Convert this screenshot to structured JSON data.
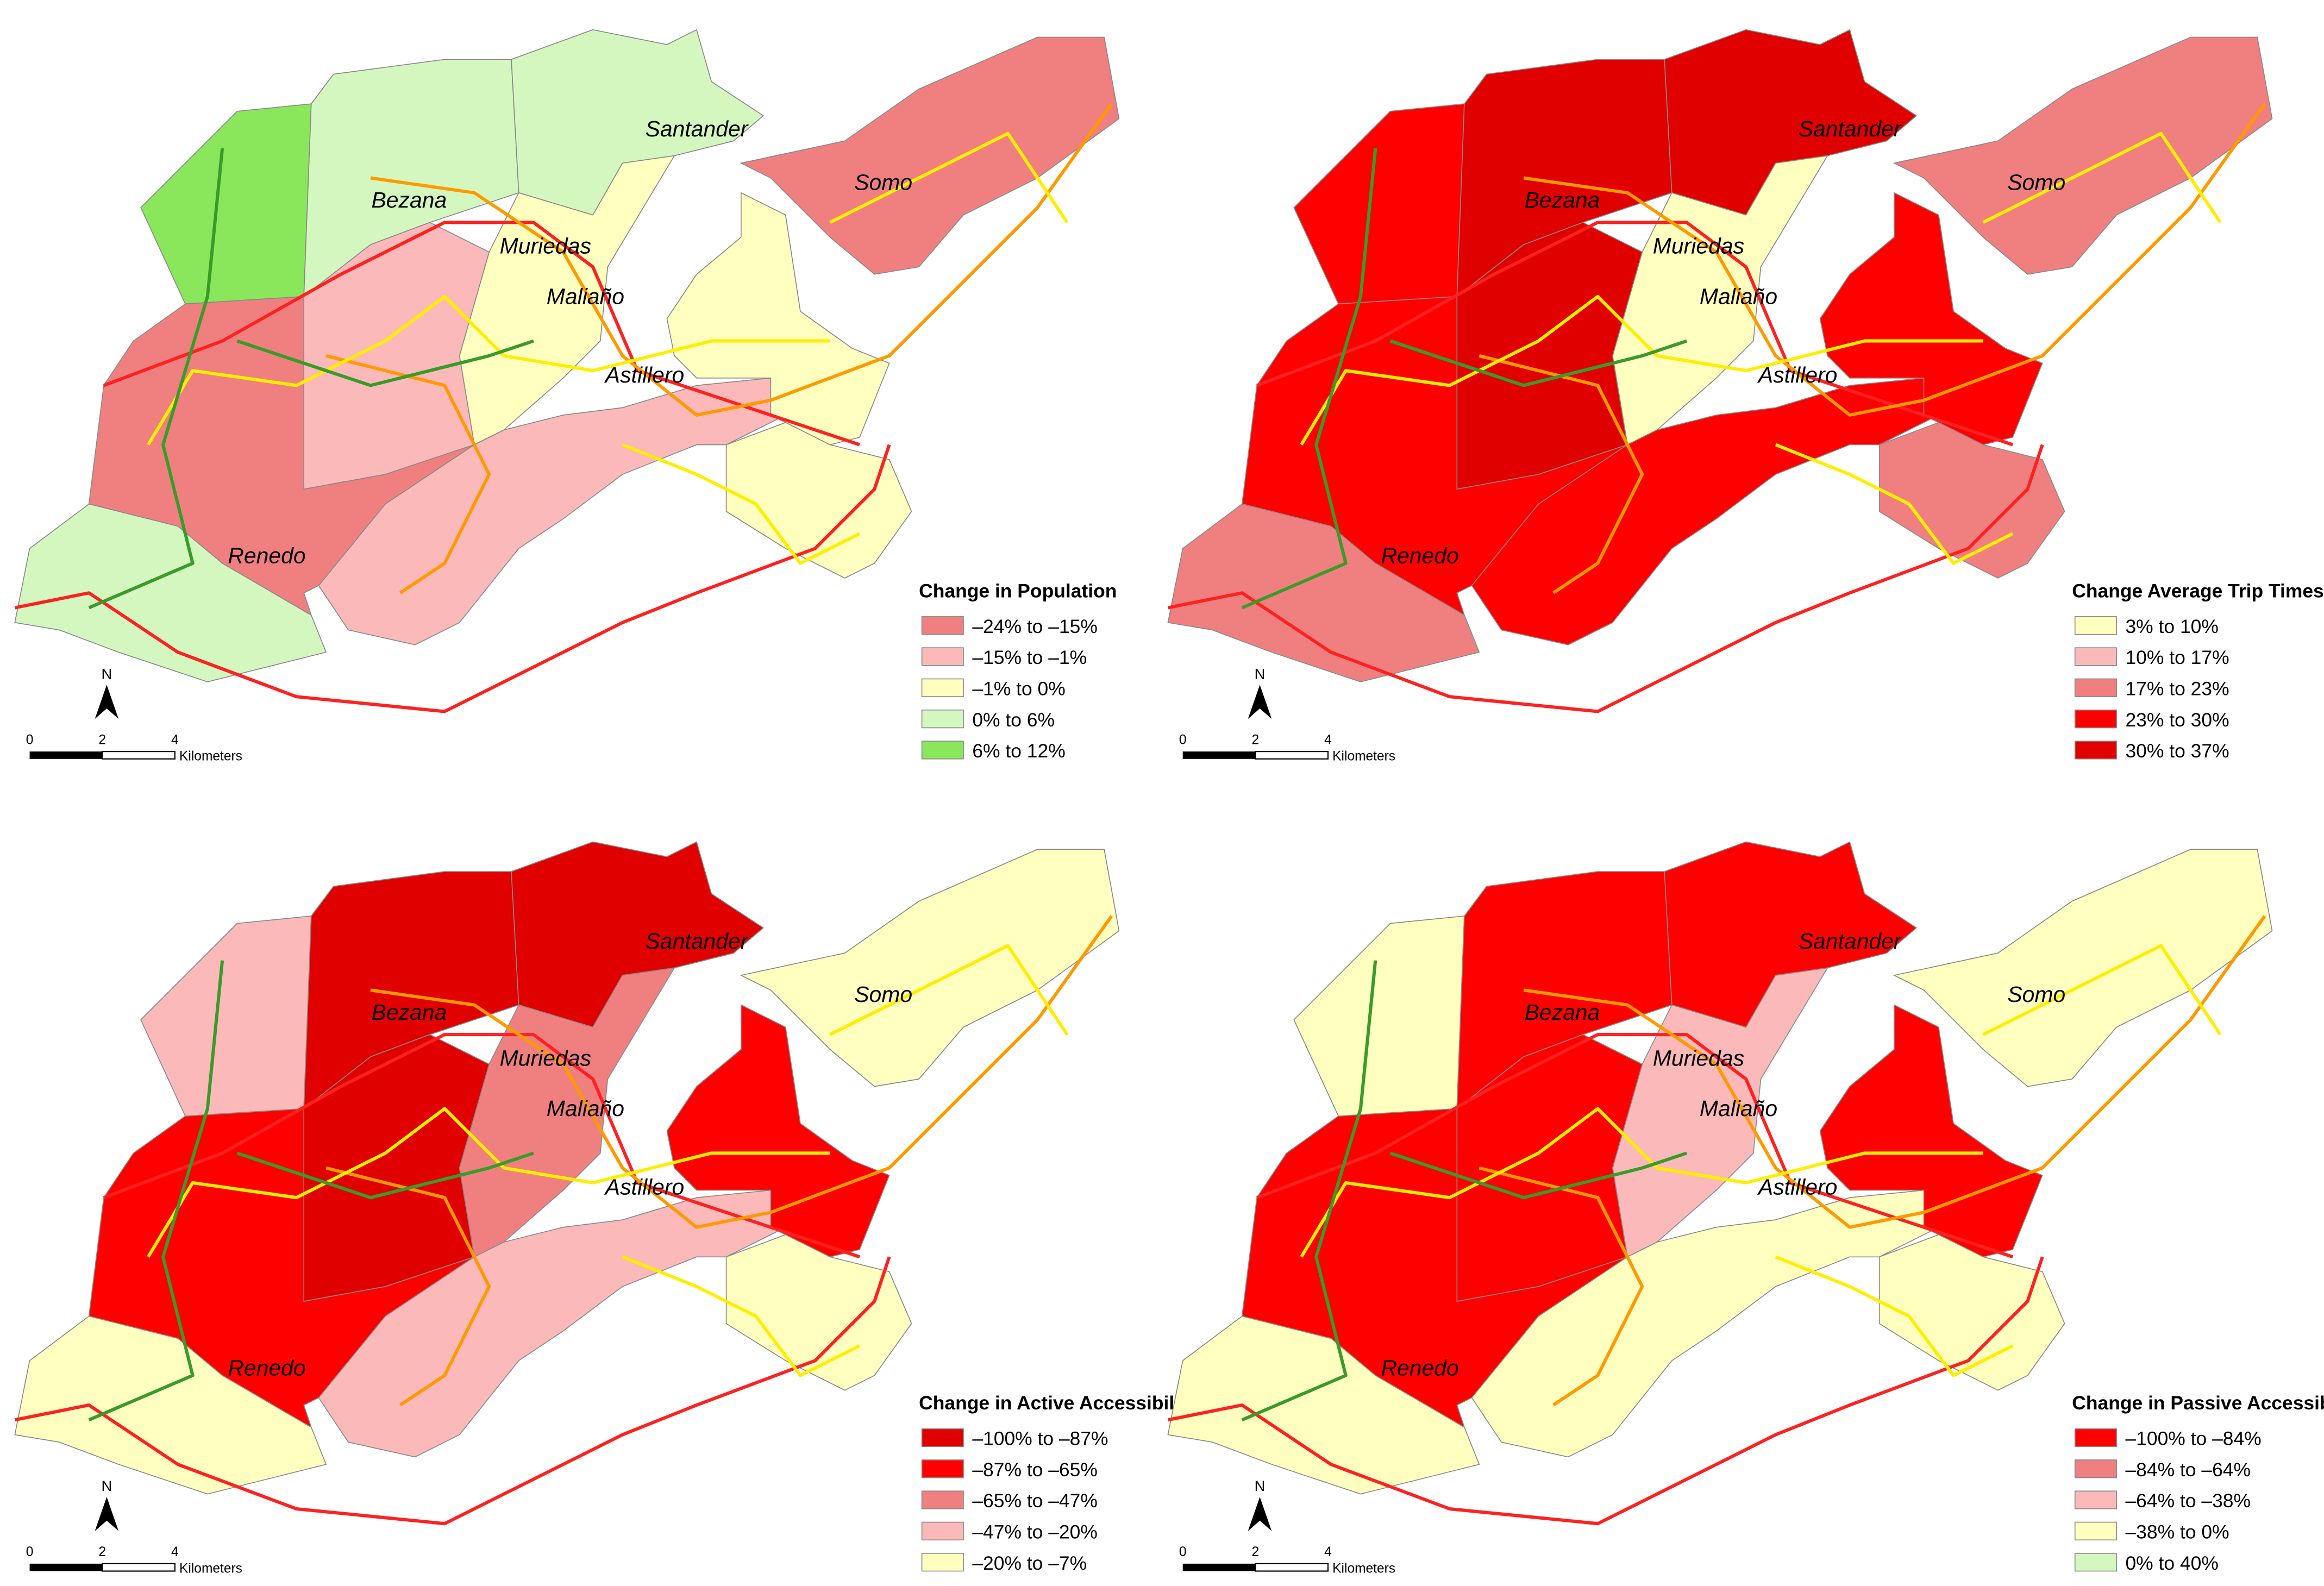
{
  "maps": [
    {
      "legend_title": "Change in Population",
      "legend": [
        {
          "label": "–24% to –15%",
          "color": "#f08080"
        },
        {
          "label": "–15% to –1%",
          "color": "#fbb9b9"
        },
        {
          "label": "–1% to 0%",
          "color": "#ffffc0"
        },
        {
          "label": "0% to 6%",
          "color": "#d4f7c0"
        },
        {
          "label": "6% to 12%",
          "color": "#8ae65a"
        }
      ]
    },
    {
      "legend_title": "Change Average Trip Times",
      "legend": [
        {
          "label": "3% to 10%",
          "color": "#ffffc0"
        },
        {
          "label": "10% to 17%",
          "color": "#fbbaba"
        },
        {
          "label": "17% to 23%",
          "color": "#f08080"
        },
        {
          "label": "23% to 30%",
          "color": "#ff0000"
        },
        {
          "label": "30% to 37%",
          "color": "#e00000"
        }
      ]
    },
    {
      "legend_title": "Change in Active Accessibility",
      "legend": [
        {
          "label": "–100% to –87%",
          "color": "#e00000"
        },
        {
          "label": "–87% to –65%",
          "color": "#ff0000"
        },
        {
          "label": "–65% to –47%",
          "color": "#f08080"
        },
        {
          "label": "–47% to –20%",
          "color": "#fbb9b9"
        },
        {
          "label": "–20% to –7%",
          "color": "#ffffc0"
        }
      ]
    },
    {
      "legend_title": "Change in Passive Accessibility",
      "legend": [
        {
          "label": "–100% to –84%",
          "color": "#ff0000"
        },
        {
          "label": "–84% to –64%",
          "color": "#f08080"
        },
        {
          "label": "–64% to –38%",
          "color": "#fbb9b9"
        },
        {
          "label": "–38% to 0%",
          "color": "#ffffc0"
        },
        {
          "label": "0% to 40%",
          "color": "#d4f7c0"
        }
      ]
    }
  ],
  "place_names": [
    "Santander",
    "Somo",
    "Bezana",
    "Muriedas",
    "Maliaño",
    "Astillero",
    "Renedo"
  ],
  "north": "N",
  "scale_bar": {
    "ticks": [
      "0",
      "2",
      "4"
    ],
    "unit": "Kilometers"
  }
}
